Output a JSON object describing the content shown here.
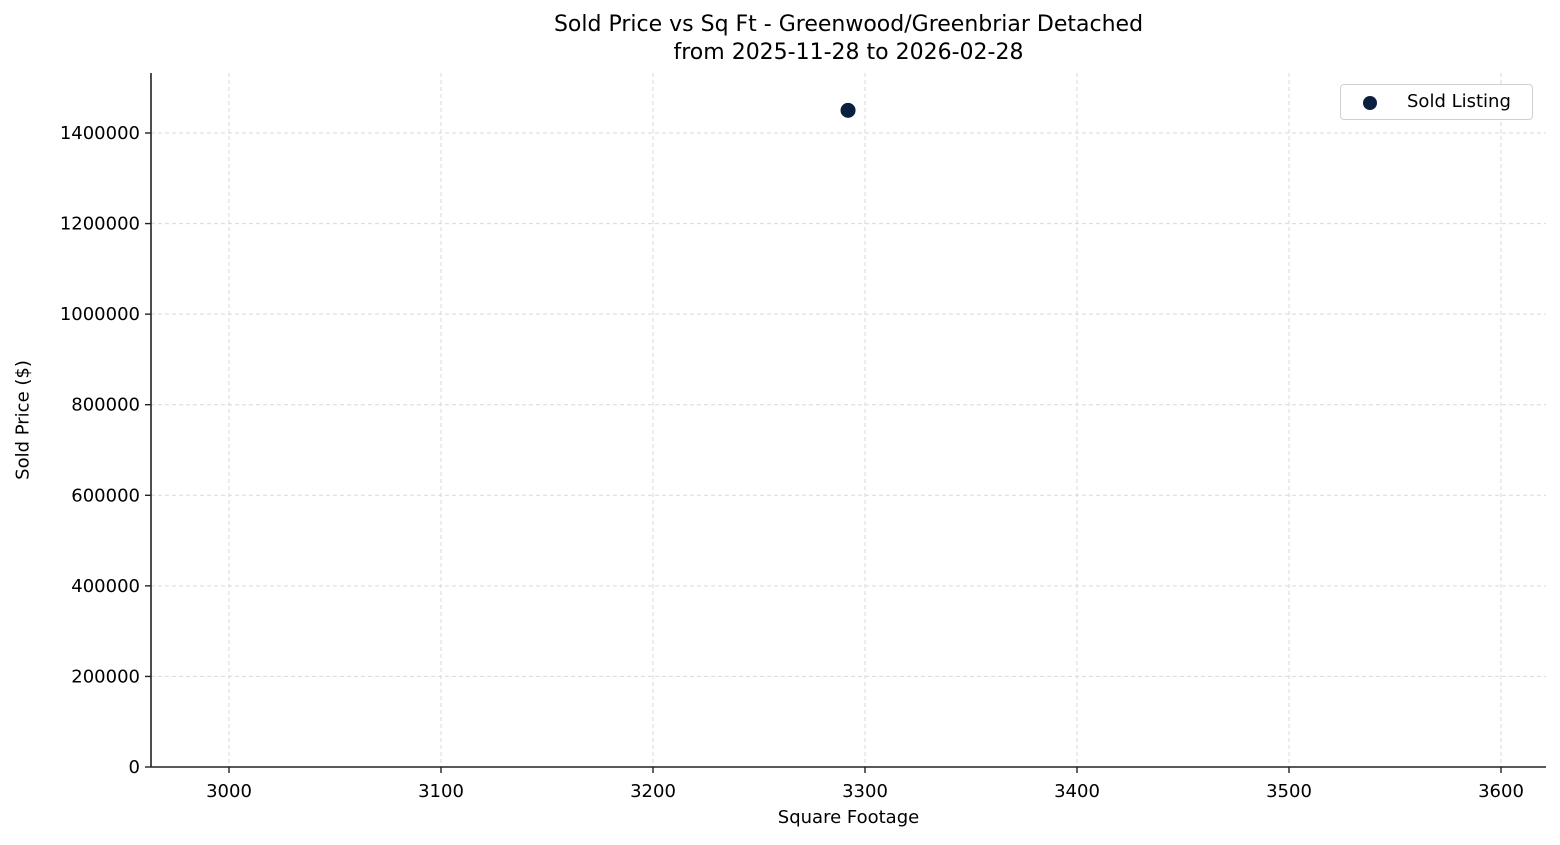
{
  "chart_data": {
    "type": "scatter",
    "title": "Sold Price vs Sq Ft - Greenwood/Greenbriar Detached",
    "subtitle": "from 2025-11-28 to 2026-02-28",
    "xlabel": "Square Footage",
    "ylabel": "Sold Price ($)",
    "xlim": [
      2963,
      3620
    ],
    "ylim": [
      0,
      1530000
    ],
    "x_ticks": [
      3000,
      3100,
      3200,
      3300,
      3400,
      3500,
      3600
    ],
    "y_ticks": [
      0,
      200000,
      400000,
      600000,
      800000,
      1000000,
      1200000,
      1400000
    ],
    "grid": true,
    "legend_position": "upper right",
    "series": [
      {
        "name": "Sold Listing",
        "color": "#0b1f3f",
        "points": [
          {
            "x": 3292,
            "y": 1450000
          }
        ]
      }
    ]
  },
  "legend": {
    "label": "Sold Listing",
    "color": "#0b1f3f"
  }
}
